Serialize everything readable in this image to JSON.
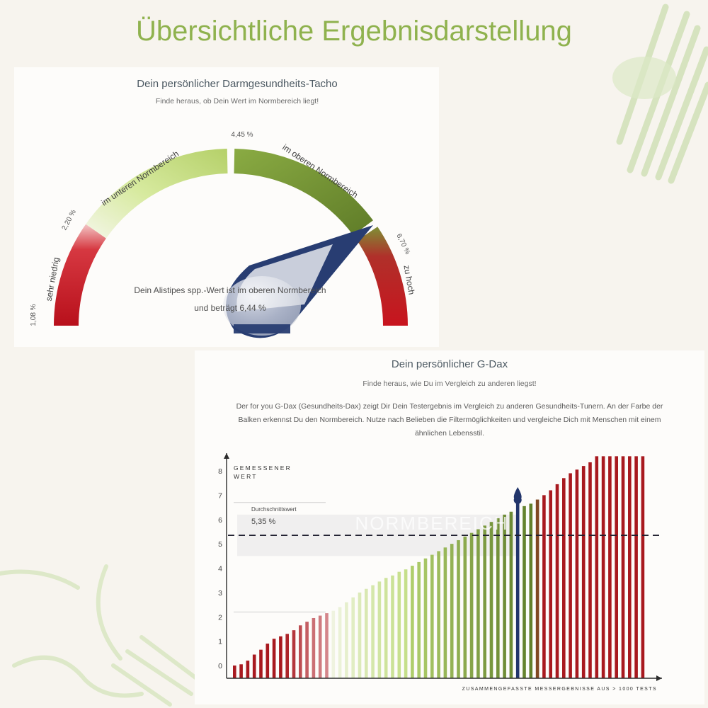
{
  "page": {
    "title": "Übersichtliche Ergebnisdarstellung"
  },
  "tacho": {
    "title": "Dein persönlicher Darmgesundheits-Tacho",
    "subtitle": "Finde heraus, ob Dein Wert im Normbereich liegt!",
    "scale_labels": [
      "1,08 %",
      "2,20 %",
      "4,45 %",
      "6,70 %"
    ],
    "zone_labels": [
      "sehr niedrig",
      "im unteren Normbereich",
      "im oberen Normbereich",
      "zu hoch"
    ],
    "result_line1": "Dein Alistipes spp.-Wert ist im oberen Normbereich",
    "result_line2": "und beträgt 6,44 %",
    "colors": {
      "red": "#c8141e",
      "light_green": "#c9e08a",
      "dark_green": "#6d8c2e",
      "needle": "#2a3f74"
    }
  },
  "gdax": {
    "title": "Dein persönlicher G-Dax",
    "subtitle": "Finde heraus, wie Du im Vergleich zu anderen liegst!",
    "description_line1": "Der for you G-Dax (Gesundheits-Dax) zeigt Dir Dein Testergebnis im Vergleich zu anderen Gesundheits-Tunern. An der Farbe der",
    "description_line2": "Balken erkennst Du den Normbereich. Nutze nach Belieben die Filtermöglichkeiten und vergleiche Dich mit Menschen mit einem",
    "description_line3": "ähnlichen Lebensstil.",
    "normbereich_label": "NORMBEREICH"
  },
  "chart_data": {
    "type": "bar",
    "title": "Dein persönlicher G-Dax",
    "ylabel_line1": "GEMESSENER",
    "ylabel_line2": "WERT",
    "xlabel": "ZUSAMMENGEFASSTE MESSERGEBNISSE AUS > 1000 TESTS",
    "ylim": [
      0,
      8.7
    ],
    "yticks": [
      "0",
      "1",
      "2",
      "3",
      "4",
      "5",
      "6",
      "7",
      "8"
    ],
    "normal_range": [
      2.2,
      6.7
    ],
    "average": {
      "label": "Durchschnittswert",
      "value": 5.35,
      "value_label": "5,35 %"
    },
    "your_value": 6.44,
    "values": [
      0.0,
      0.05,
      0.2,
      0.45,
      0.65,
      0.9,
      1.1,
      1.2,
      1.3,
      1.45,
      1.65,
      1.8,
      1.95,
      2.05,
      2.15,
      2.25,
      2.4,
      2.6,
      2.8,
      3.0,
      3.15,
      3.3,
      3.45,
      3.6,
      3.7,
      3.85,
      3.95,
      4.1,
      4.25,
      4.4,
      4.55,
      4.7,
      4.85,
      5.0,
      5.15,
      5.3,
      5.45,
      5.6,
      5.75,
      5.9,
      6.05,
      6.2,
      6.32,
      6.44,
      6.55,
      6.65,
      6.82,
      7.0,
      7.2,
      7.45,
      7.7,
      7.9,
      8.05,
      8.2,
      8.35,
      8.6,
      8.6,
      8.6,
      8.6,
      8.6,
      8.6,
      8.6,
      8.6
    ]
  }
}
